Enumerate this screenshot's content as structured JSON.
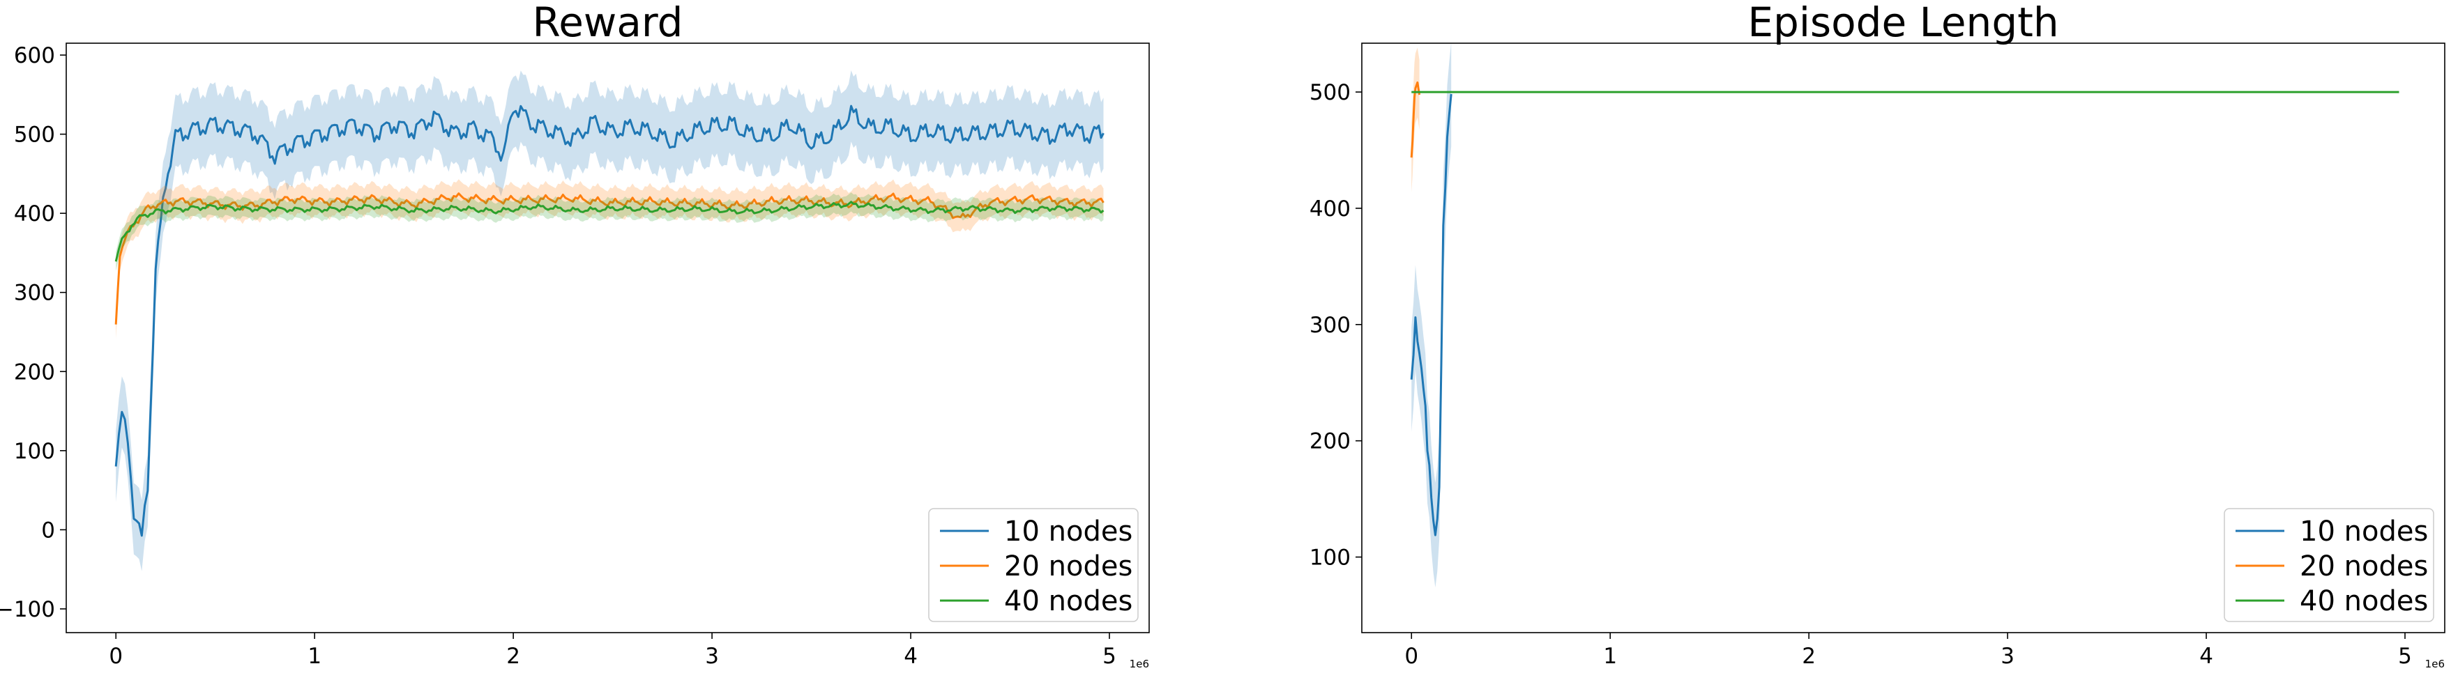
{
  "colors": {
    "series_1": "#1f77b4",
    "series_2": "#ff7f0e",
    "series_3": "#2ca02c"
  },
  "chart_data": [
    {
      "type": "line",
      "title": "Reward",
      "xlabel": "",
      "ylabel": "",
      "x_offset_label": "1e6",
      "xlim": [
        -0.25,
        5.2
      ],
      "ylim": [
        -130,
        615
      ],
      "xticks": [
        0,
        1,
        2,
        3,
        4,
        5
      ],
      "xtick_labels": [
        "0",
        "1",
        "2",
        "3",
        "4",
        "5"
      ],
      "yticks": [
        -100,
        0,
        100,
        200,
        300,
        400,
        500,
        600
      ],
      "ytick_labels": [
        "−100",
        "0",
        "100",
        "200",
        "300",
        "400",
        "500",
        "600"
      ],
      "legend_position": "lower right",
      "grid": false,
      "series": [
        {
          "name": "10 nodes",
          "color": "#1f77b4",
          "band_width": 45,
          "points": [
            [
              0,
              80
            ],
            [
              0.03,
              145
            ],
            [
              0.06,
              120
            ],
            [
              0.09,
              25
            ],
            [
              0.13,
              -10
            ],
            [
              0.16,
              60
            ],
            [
              0.2,
              330
            ],
            [
              0.25,
              440
            ],
            [
              0.3,
              495
            ],
            [
              0.4,
              505
            ],
            [
              0.5,
              515
            ],
            [
              0.6,
              510
            ],
            [
              0.7,
              500
            ],
            [
              0.8,
              470
            ],
            [
              0.9,
              490
            ],
            [
              1.0,
              500
            ],
            [
              1.1,
              505
            ],
            [
              1.2,
              510
            ],
            [
              1.3,
              500
            ],
            [
              1.4,
              515
            ],
            [
              1.5,
              505
            ],
            [
              1.6,
              520
            ],
            [
              1.7,
              500
            ],
            [
              1.8,
              510
            ],
            [
              1.9,
              495
            ],
            [
              1.95,
              470
            ],
            [
              2.0,
              535
            ],
            [
              2.1,
              510
            ],
            [
              2.2,
              505
            ],
            [
              2.3,
              495
            ],
            [
              2.4,
              515
            ],
            [
              2.5,
              500
            ],
            [
              2.6,
              510
            ],
            [
              2.7,
              505
            ],
            [
              2.8,
              490
            ],
            [
              2.9,
              500
            ],
            [
              3.0,
              510
            ],
            [
              3.1,
              515
            ],
            [
              3.2,
              500
            ],
            [
              3.3,
              495
            ],
            [
              3.4,
              510
            ],
            [
              3.5,
              490
            ],
            [
              3.6,
              500
            ],
            [
              3.7,
              525
            ],
            [
              3.8,
              505
            ],
            [
              3.9,
              510
            ],
            [
              4.0,
              500
            ],
            [
              4.1,
              505
            ],
            [
              4.2,
              495
            ],
            [
              4.3,
              500
            ],
            [
              4.4,
              505
            ],
            [
              4.5,
              510
            ],
            [
              4.6,
              500
            ],
            [
              4.7,
              495
            ],
            [
              4.8,
              510
            ],
            [
              4.9,
              500
            ],
            [
              4.97,
              505
            ]
          ]
        },
        {
          "name": "20 nodes",
          "color": "#ff7f0e",
          "band_width": 18,
          "points": [
            [
              0,
              260
            ],
            [
              0.02,
              350
            ],
            [
              0.06,
              375
            ],
            [
              0.1,
              390
            ],
            [
              0.15,
              405
            ],
            [
              0.2,
              412
            ],
            [
              0.3,
              415
            ],
            [
              0.5,
              412
            ],
            [
              0.7,
              410
            ],
            [
              0.9,
              418
            ],
            [
              1.1,
              415
            ],
            [
              1.3,
              418
            ],
            [
              1.5,
              412
            ],
            [
              1.7,
              420
            ],
            [
              1.9,
              418
            ],
            [
              2.1,
              416
            ],
            [
              2.3,
              420
            ],
            [
              2.5,
              412
            ],
            [
              2.7,
              416
            ],
            [
              2.9,
              412
            ],
            [
              3.1,
              410
            ],
            [
              3.3,
              415
            ],
            [
              3.5,
              416
            ],
            [
              3.7,
              412
            ],
            [
              3.9,
              420
            ],
            [
              4.1,
              416
            ],
            [
              4.25,
              392
            ],
            [
              4.4,
              415
            ],
            [
              4.6,
              418
            ],
            [
              4.8,
              414
            ],
            [
              4.97,
              415
            ]
          ]
        },
        {
          "name": "40 nodes",
          "color": "#2ca02c",
          "band_width": 12,
          "points": [
            [
              0,
              340
            ],
            [
              0.03,
              365
            ],
            [
              0.08,
              385
            ],
            [
              0.12,
              395
            ],
            [
              0.2,
              403
            ],
            [
              0.3,
              405
            ],
            [
              0.5,
              408
            ],
            [
              0.7,
              406
            ],
            [
              0.9,
              404
            ],
            [
              1.1,
              406
            ],
            [
              1.3,
              408
            ],
            [
              1.5,
              404
            ],
            [
              1.7,
              406
            ],
            [
              1.9,
              403
            ],
            [
              2.1,
              408
            ],
            [
              2.3,
              404
            ],
            [
              2.5,
              406
            ],
            [
              2.7,
              404
            ],
            [
              2.9,
              406
            ],
            [
              3.1,
              402
            ],
            [
              3.3,
              404
            ],
            [
              3.5,
              408
            ],
            [
              3.7,
              412
            ],
            [
              3.9,
              406
            ],
            [
              4.1,
              404
            ],
            [
              4.3,
              406
            ],
            [
              4.5,
              404
            ],
            [
              4.7,
              406
            ],
            [
              4.97,
              405
            ]
          ]
        }
      ]
    },
    {
      "type": "line",
      "title": "Episode Length",
      "xlabel": "",
      "ylabel": "",
      "x_offset_label": "1e6",
      "xlim": [
        -0.25,
        5.2
      ],
      "ylim": [
        35,
        542
      ],
      "xticks": [
        0,
        1,
        2,
        3,
        4,
        5
      ],
      "xtick_labels": [
        "0",
        "1",
        "2",
        "3",
        "4",
        "5"
      ],
      "yticks": [
        100,
        200,
        300,
        400,
        500
      ],
      "ytick_labels": [
        "100",
        "200",
        "300",
        "400",
        "500"
      ],
      "legend_position": "lower right",
      "grid": false,
      "series": [
        {
          "name": "10 nodes",
          "color": "#1f77b4",
          "band_width": 45,
          "points": [
            [
              0,
              240
            ],
            [
              0.02,
              300
            ],
            [
              0.04,
              285
            ],
            [
              0.06,
              250
            ],
            [
              0.08,
              190
            ],
            [
              0.1,
              160
            ],
            [
              0.12,
              125
            ],
            [
              0.14,
              150
            ],
            [
              0.16,
              380
            ],
            [
              0.18,
              470
            ],
            [
              0.2,
              500
            ]
          ]
        },
        {
          "name": "20 nodes",
          "color": "#ff7f0e",
          "band_width": 30,
          "points": [
            [
              0,
              445
            ],
            [
              0.01,
              480
            ],
            [
              0.02,
              500
            ],
            [
              0.04,
              500
            ]
          ]
        },
        {
          "name": "40 nodes",
          "color": "#2ca02c",
          "band_width": 0,
          "points": [
            [
              0,
              500
            ],
            [
              4.97,
              500
            ]
          ]
        }
      ]
    }
  ]
}
